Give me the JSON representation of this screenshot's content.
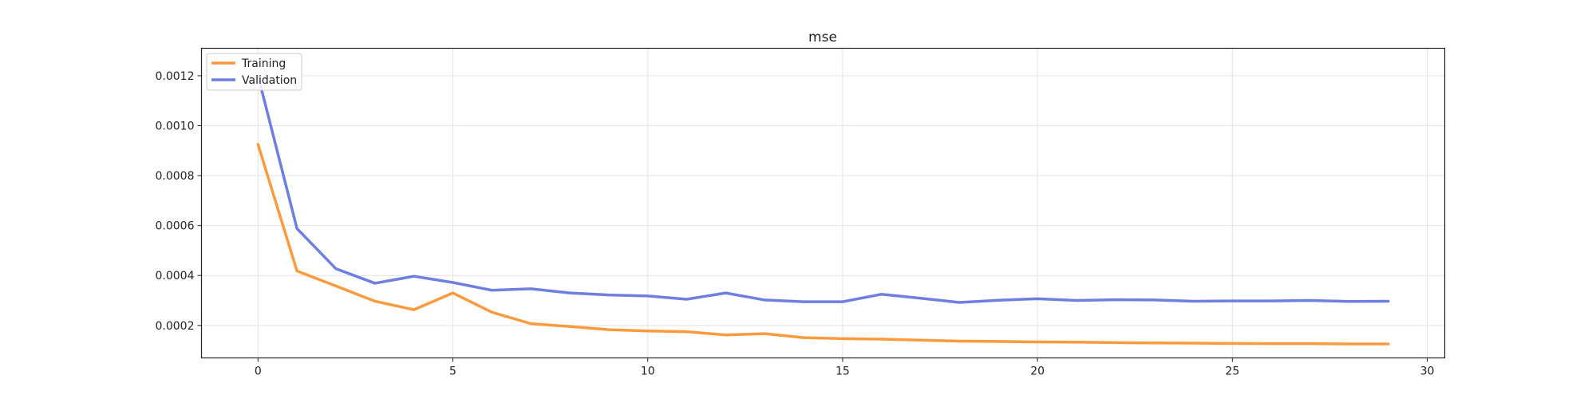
{
  "chart_data": {
    "type": "line",
    "title": "mse",
    "xlabel": "",
    "ylabel": "",
    "xlim": [
      -1.45,
      30.45
    ],
    "ylim": [
      7e-05,
      0.00131
    ],
    "x_ticks": [
      0,
      5,
      10,
      15,
      20,
      25,
      30
    ],
    "y_ticks": [
      0.0002,
      0.0004,
      0.0006,
      0.0008,
      0.001,
      0.0012
    ],
    "y_tick_labels": [
      "0.0002",
      "0.0004",
      "0.0006",
      "0.0008",
      "0.0010",
      "0.0012"
    ],
    "grid": true,
    "legend_position": "top-left",
    "x": [
      0,
      1,
      2,
      3,
      4,
      5,
      6,
      7,
      8,
      9,
      10,
      11,
      12,
      13,
      14,
      15,
      16,
      17,
      18,
      19,
      20,
      21,
      22,
      23,
      24,
      25,
      26,
      27,
      28,
      29
    ],
    "series": [
      {
        "name": "Training",
        "color": "#fd9a3e",
        "values": [
          0.000925,
          0.000418,
          0.000358,
          0.000297,
          0.000263,
          0.00033,
          0.000253,
          0.000207,
          0.000196,
          0.000183,
          0.000178,
          0.000175,
          0.000162,
          0.000167,
          0.000151,
          0.000147,
          0.000145,
          0.000141,
          0.000137,
          0.000136,
          0.000134,
          0.000133,
          0.000131,
          0.00013,
          0.000129,
          0.000128,
          0.000127,
          0.000127,
          0.000126,
          0.000126
        ]
      },
      {
        "name": "Validation",
        "color": "#6e7fe0",
        "values": [
          0.0012,
          0.000588,
          0.000427,
          0.000369,
          0.000397,
          0.000372,
          0.000341,
          0.000347,
          0.00033,
          0.000322,
          0.000318,
          0.000305,
          0.00033,
          0.000302,
          0.000295,
          0.000295,
          0.000325,
          0.000309,
          0.000292,
          0.000301,
          0.000307,
          0.0003,
          0.000303,
          0.000302,
          0.000297,
          0.000298,
          0.000298,
          0.0003,
          0.000296,
          0.000297
        ]
      }
    ]
  }
}
